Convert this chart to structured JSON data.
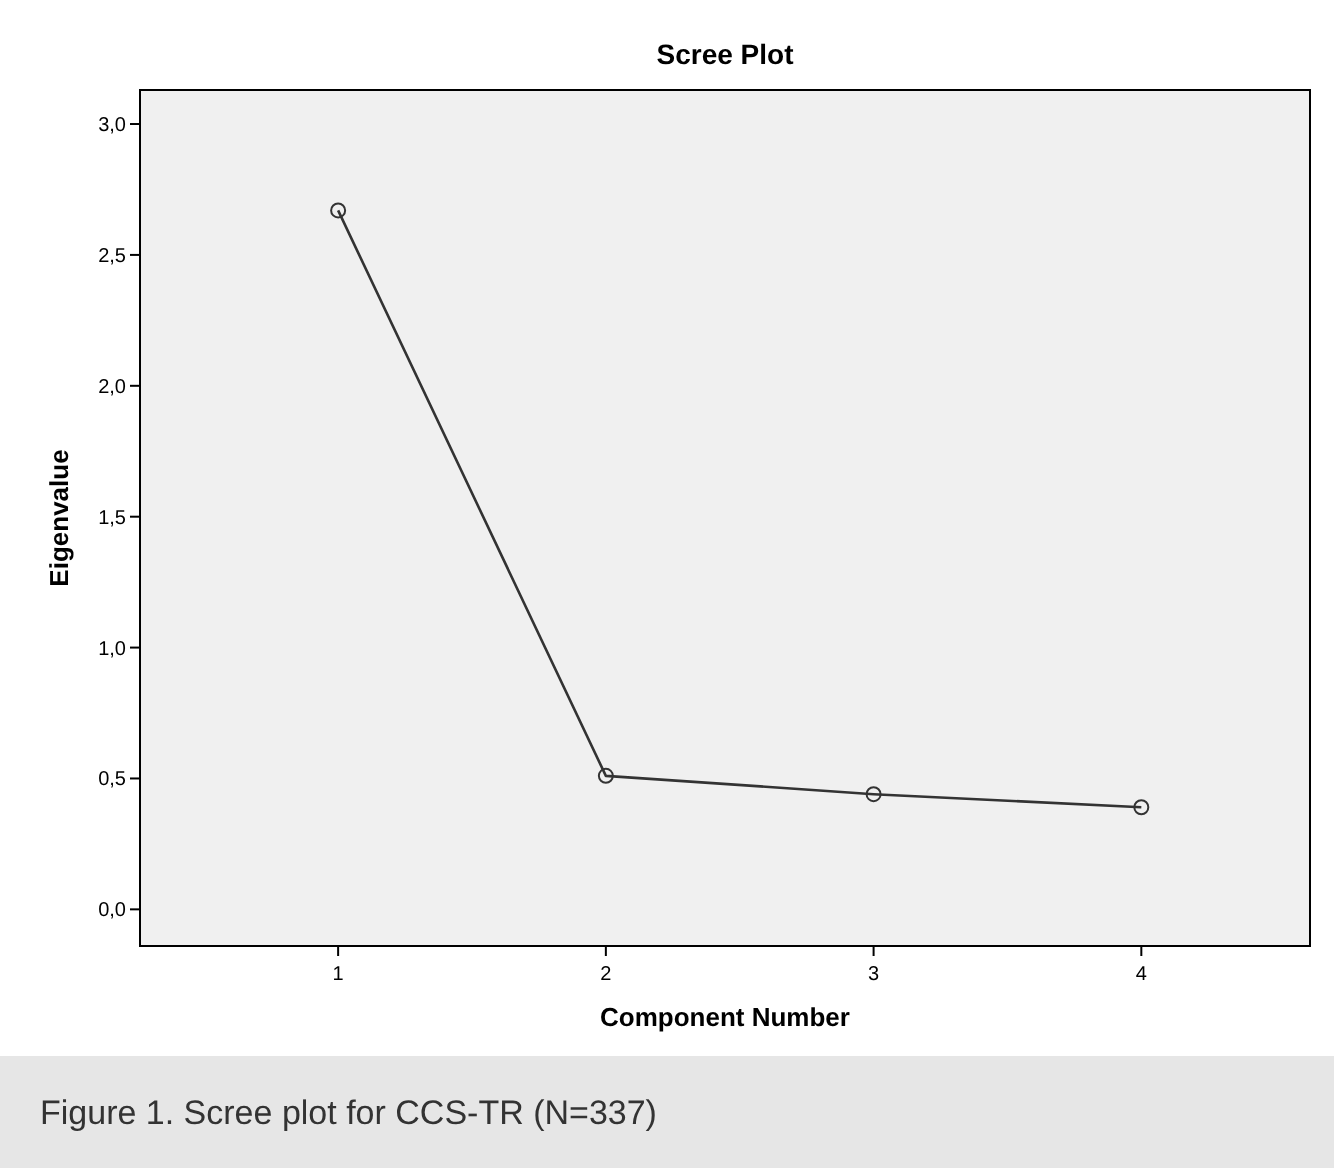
{
  "chart_data": {
    "type": "line",
    "title": "Scree Plot",
    "xlabel": "Component Number",
    "ylabel": "Eigenvalue",
    "x": [
      1,
      2,
      3,
      4
    ],
    "series": [
      {
        "color": "#333333",
        "values": [
          2.67,
          0.51,
          0.44,
          0.39
        ]
      }
    ],
    "xlim": [
      0.26,
      4.63
    ],
    "xticks": [
      1,
      2,
      3,
      4
    ],
    "ylim": [
      -0.14,
      3.13
    ],
    "yticks": [
      {
        "value": 0,
        "label": "0,0"
      },
      {
        "value": 0.5,
        "label": "0,5"
      },
      {
        "value": 1,
        "label": "1,0"
      },
      {
        "value": 1.5,
        "label": "1,5"
      },
      {
        "value": 2,
        "label": "2,0"
      },
      {
        "value": 2.5,
        "label": "2,5"
      },
      {
        "value": 3,
        "label": "3,0"
      }
    ],
    "marker": "circle",
    "line_style": "solid",
    "grid": false,
    "annotations": [
      "Figure 1. Scree plot for CCS-TR (N=337)"
    ]
  }
}
